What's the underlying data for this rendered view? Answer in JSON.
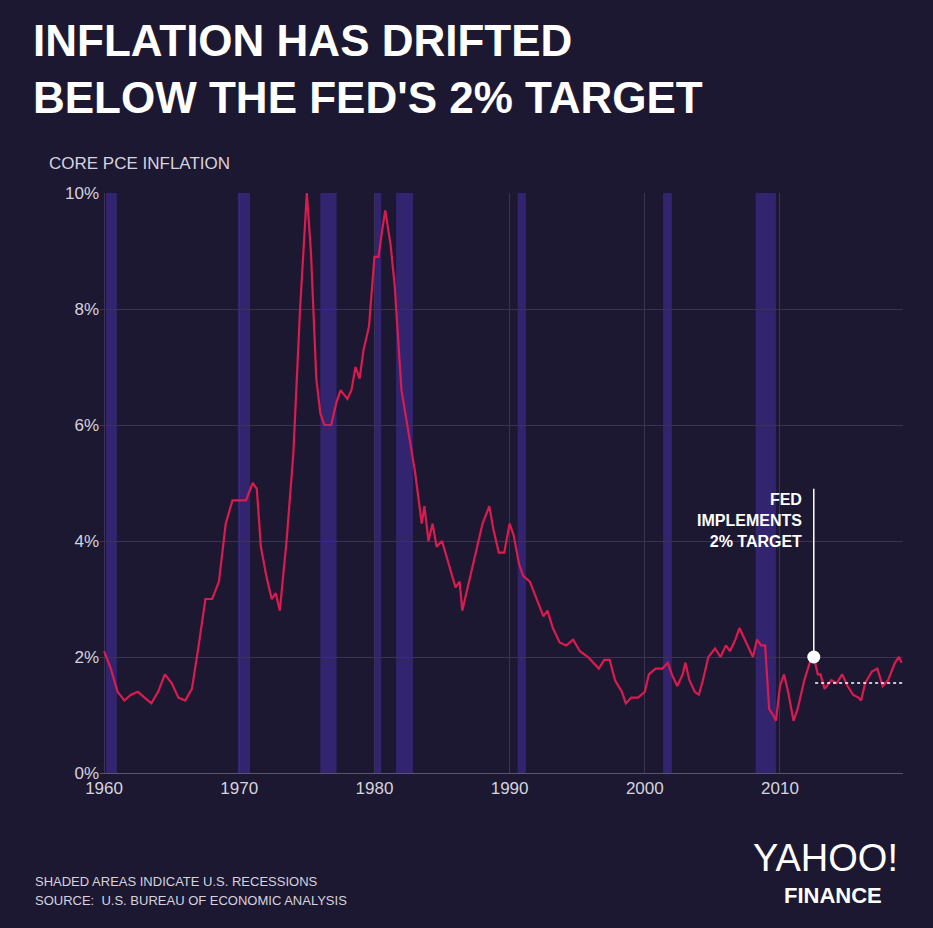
{
  "chart_data": {
    "type": "line",
    "title": "INFLATION HAS DRIFTED\nBELOW THE FED'S 2% TARGET",
    "y_label": "CORE PCE INFLATION",
    "color": "#d91c4f",
    "x": [
      1960.0,
      1960.5,
      1961.0,
      1961.5,
      1962.0,
      1962.5,
      1963.0,
      1963.5,
      1964.0,
      1964.5,
      1965.0,
      1965.5,
      1966.0,
      1966.5,
      1967.0,
      1967.5,
      1968.0,
      1968.5,
      1969.0,
      1969.5,
      1970.0,
      1970.5,
      1971.0,
      1971.3,
      1971.6,
      1972.0,
      1972.4,
      1972.7,
      1973.0,
      1973.5,
      1974.0,
      1974.5,
      1975.0,
      1975.3,
      1975.7,
      1976.0,
      1976.3,
      1976.8,
      1977.2,
      1977.5,
      1978.0,
      1978.3,
      1978.6,
      1978.9,
      1979.2,
      1979.6,
      1980.0,
      1980.3,
      1980.6,
      1980.8,
      1981.2,
      1981.5,
      1982.0,
      1982.5,
      1983.0,
      1983.5,
      1983.7,
      1984.0,
      1984.3,
      1984.6,
      1985.0,
      1985.5,
      1986.0,
      1986.3,
      1986.5,
      1987.0,
      1987.5,
      1988.0,
      1988.5,
      1988.8,
      1989.2,
      1989.6,
      1990.0,
      1990.3,
      1990.7,
      1991.0,
      1991.5,
      1992.0,
      1992.5,
      1992.8,
      1993.2,
      1993.7,
      1994.2,
      1994.7,
      1995.2,
      1995.8,
      1996.2,
      1996.6,
      1997.0,
      1997.4,
      1997.8,
      1998.3,
      1998.6,
      1999.0,
      1999.5,
      2000.0,
      2000.3,
      2000.8,
      2001.3,
      2001.7,
      2002.0,
      2002.4,
      2002.8,
      2003.0,
      2003.3,
      2003.7,
      2004.0,
      2004.3,
      2004.7,
      2005.2,
      2005.6,
      2006.0,
      2006.3,
      2006.7,
      2007.0,
      2007.3,
      2007.6,
      2008.0,
      2008.3,
      2008.6,
      2008.9,
      2009.2,
      2009.5,
      2009.7,
      2010.0,
      2010.3,
      2010.6,
      2011.0,
      2011.3,
      2011.8,
      2012.2,
      2012.5,
      2012.8,
      2013.0,
      2013.3,
      2013.8,
      2014.2,
      2014.6,
      2015.0,
      2015.4,
      2015.8,
      2016.0,
      2016.3,
      2016.8,
      2017.2,
      2017.6,
      2018.0,
      2018.5,
      2018.8,
      2019.0
    ],
    "values": [
      2.1,
      1.8,
      1.4,
      1.25,
      1.35,
      1.4,
      1.3,
      1.2,
      1.4,
      1.7,
      1.55,
      1.3,
      1.25,
      1.45,
      2.2,
      3.0,
      3.0,
      3.3,
      4.3,
      4.7,
      4.7,
      4.7,
      5.0,
      4.9,
      3.9,
      3.4,
      3.0,
      3.1,
      2.8,
      4.0,
      5.5,
      8.0,
      10.0,
      9.0,
      6.8,
      6.2,
      6.0,
      6.0,
      6.4,
      6.6,
      6.45,
      6.6,
      7.0,
      6.8,
      7.3,
      7.7,
      8.9,
      8.9,
      9.4,
      9.7,
      9.1,
      8.4,
      6.6,
      5.9,
      5.2,
      4.3,
      4.6,
      4.0,
      4.3,
      3.9,
      4.0,
      3.6,
      3.2,
      3.3,
      2.8,
      3.3,
      3.8,
      4.3,
      4.6,
      4.2,
      3.8,
      3.8,
      4.3,
      4.1,
      3.6,
      3.4,
      3.3,
      3.0,
      2.7,
      2.8,
      2.5,
      2.25,
      2.2,
      2.3,
      2.1,
      2.0,
      1.9,
      1.8,
      1.95,
      1.95,
      1.6,
      1.4,
      1.2,
      1.3,
      1.3,
      1.4,
      1.7,
      1.8,
      1.8,
      1.9,
      1.7,
      1.5,
      1.7,
      1.9,
      1.6,
      1.4,
      1.35,
      1.6,
      2.0,
      2.15,
      2.0,
      2.2,
      2.1,
      2.3,
      2.5,
      2.35,
      2.2,
      2.0,
      2.3,
      2.2,
      2.2,
      1.1,
      1.0,
      0.9,
      1.5,
      1.7,
      1.4,
      0.9,
      1.1,
      1.6,
      1.9,
      2.0,
      1.7,
      1.7,
      1.45,
      1.6,
      1.55,
      1.7,
      1.5,
      1.35,
      1.3,
      1.25,
      1.55,
      1.75,
      1.8,
      1.5,
      1.6,
      1.9,
      2.0,
      1.9
    ],
    "xlim": [
      1959.7,
      2019.1
    ],
    "ylim": [
      0,
      10
    ],
    "xticks": [
      1960,
      1970,
      1980,
      1990,
      2000,
      2010
    ],
    "yticks": [
      {
        "value": 0,
        "label": "0%"
      },
      {
        "value": 2,
        "label": "2%"
      },
      {
        "value": 4,
        "label": "4%"
      },
      {
        "value": 6,
        "label": "6%"
      },
      {
        "value": 8,
        "label": "8%"
      },
      {
        "value": 10,
        "label": "10%"
      }
    ],
    "grid": true,
    "recessions": [
      [
        1960.15,
        1960.95
      ],
      [
        1969.9,
        1970.8
      ],
      [
        1976.0,
        1977.2
      ],
      [
        1980.05,
        1980.5
      ],
      [
        1981.6,
        1982.85
      ],
      [
        1990.6,
        1991.2
      ],
      [
        2001.35,
        2002.0
      ],
      [
        2008.2,
        2009.7
      ]
    ],
    "annotations": [
      {
        "text": "FED\nIMPLEMENTS\n2% TARGET",
        "x": 2012.5,
        "y": 2.0,
        "y_end": 4.9
      }
    ],
    "reference_line": {
      "value": 1.55,
      "from": 2012.6
    },
    "notes": [
      "SHADED AREAS INDICATE U.S. RECESSIONS",
      "SOURCE:  U.S. BUREAU OF ECONOMIC ANALYSIS"
    ],
    "logo": [
      "YAHOO!",
      "FINANCE"
    ]
  }
}
